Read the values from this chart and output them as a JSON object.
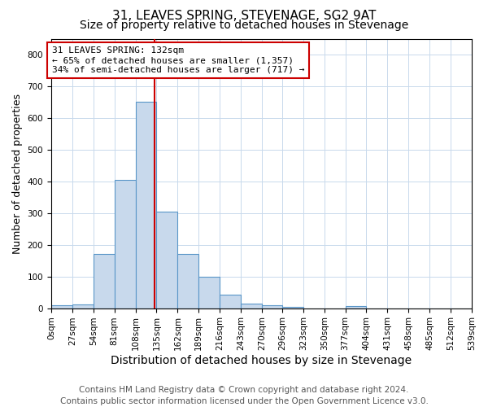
{
  "title": "31, LEAVES SPRING, STEVENAGE, SG2 9AT",
  "subtitle": "Size of property relative to detached houses in Stevenage",
  "xlabel": "Distribution of detached houses by size in Stevenage",
  "ylabel": "Number of detached properties",
  "bin_edges": [
    0,
    27,
    54,
    81,
    108,
    135,
    162,
    189,
    216,
    243,
    270,
    296,
    323,
    350,
    377,
    404,
    431,
    458,
    485,
    512,
    539
  ],
  "bar_heights": [
    8,
    12,
    170,
    405,
    650,
    305,
    170,
    98,
    42,
    15,
    10,
    5,
    0,
    0,
    6,
    0,
    0,
    0,
    0,
    0
  ],
  "bar_color": "#c8d9ec",
  "bar_edge_color": "#5a96c8",
  "vline_x": 132,
  "vline_color": "#cc0000",
  "annotation_text": "31 LEAVES SPRING: 132sqm\n← 65% of detached houses are smaller (1,357)\n34% of semi-detached houses are larger (717) →",
  "annotation_box_color": "white",
  "annotation_box_edge_color": "#cc0000",
  "ylim": [
    0,
    850
  ],
  "yticks": [
    0,
    100,
    200,
    300,
    400,
    500,
    600,
    700,
    800
  ],
  "footer_text": "Contains HM Land Registry data © Crown copyright and database right 2024.\nContains public sector information licensed under the Open Government Licence v3.0.",
  "title_fontsize": 11,
  "subtitle_fontsize": 10,
  "xlabel_fontsize": 10,
  "ylabel_fontsize": 9,
  "tick_fontsize": 7.5,
  "annotation_fontsize": 8,
  "footer_fontsize": 7.5
}
